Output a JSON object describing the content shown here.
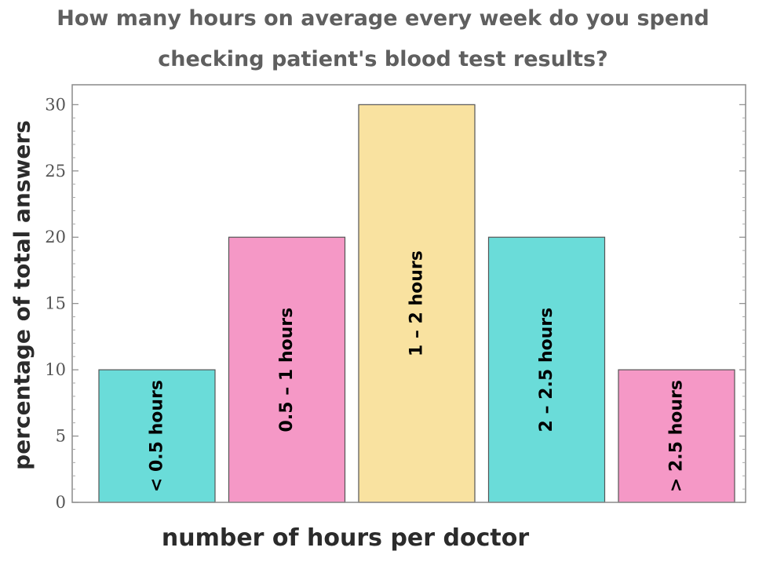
{
  "chart_data": {
    "type": "bar",
    "title": "How many hours on average every week do you spend checking patient's blood test results?",
    "title_lines": [
      "How many hours on average every week do you spend",
      "checking patient's blood test results?"
    ],
    "xlabel": "number of hours per doctor",
    "ylabel": "percentage of total answers",
    "categories": [
      "< 0.5 hours",
      "0.5 – 1 hours",
      "1 – 2 hours",
      "2 – 2.5 hours",
      "> 2.5 hours"
    ],
    "values": [
      10,
      20,
      30,
      20,
      10
    ],
    "colors": [
      "#6adcd9",
      "#f598c6",
      "#f9e2a0",
      "#6adcd9",
      "#f598c6"
    ],
    "ylim": [
      0,
      31.5
    ],
    "yticks": [
      0,
      5,
      10,
      15,
      20,
      25,
      30
    ],
    "grid": false,
    "legend": "none"
  }
}
